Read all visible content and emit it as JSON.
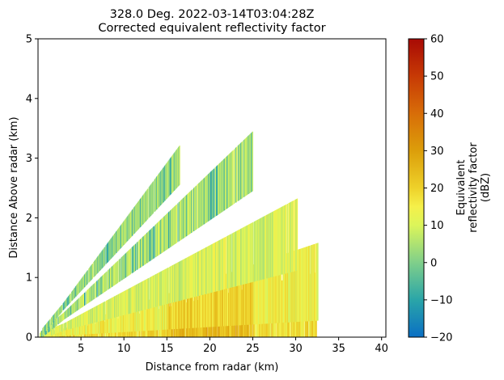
{
  "chart_data": {
    "type": "heatmap",
    "title_line1": "328.0 Deg. 2022-03-14T03:04:28Z",
    "title_line2": "Corrected equivalent reflectivity factor",
    "xlabel": "Distance from radar (km)",
    "ylabel": "Distance Above radar  (km)",
    "xlim": [
      0.0,
      40.5
    ],
    "ylim": [
      0,
      5
    ],
    "x_ticks": [
      5,
      10,
      15,
      20,
      25,
      30,
      35,
      40
    ],
    "y_ticks": [
      0,
      1,
      2,
      3,
      4,
      5
    ],
    "colorbar": {
      "label_lines": [
        "Equivalent",
        "reflectivity factor",
        "(dBZ)"
      ],
      "range": [
        -20,
        60
      ],
      "ticks": [
        -20,
        -10,
        0,
        10,
        20,
        30,
        40,
        50,
        60
      ],
      "colormap_stops": [
        {
          "v": -20,
          "c": "#0a6fc4"
        },
        {
          "v": -10,
          "c": "#2aa5a8"
        },
        {
          "v": 0,
          "c": "#7fcf8a"
        },
        {
          "v": 10,
          "c": "#dcf55a"
        },
        {
          "v": 15,
          "c": "#f5f04a"
        },
        {
          "v": 20,
          "c": "#eed12a"
        },
        {
          "v": 30,
          "c": "#dc9e0a"
        },
        {
          "v": 40,
          "c": "#d86d08"
        },
        {
          "v": 50,
          "c": "#c73a05"
        },
        {
          "v": 60,
          "c": "#a80a05"
        }
      ]
    },
    "sweeps": [
      {
        "elevation_slope": 0.0135,
        "x_range": [
          0.2,
          32.5
        ],
        "typical_dbz": 18
      },
      {
        "elevation_slope": 0.0285,
        "x_range": [
          0.2,
          32.6
        ],
        "typical_dbz": 14
      },
      {
        "elevation_slope": 0.057,
        "x_range": [
          0.2,
          30.2
        ],
        "typical_dbz": 10
      },
      {
        "elevation_slope": 0.118,
        "x_range": [
          0.3,
          25.0
        ],
        "typical_dbz": 6
      },
      {
        "elevation_slope": 0.175,
        "x_range": [
          0.5,
          16.5
        ],
        "typical_dbz": 3
      }
    ]
  }
}
